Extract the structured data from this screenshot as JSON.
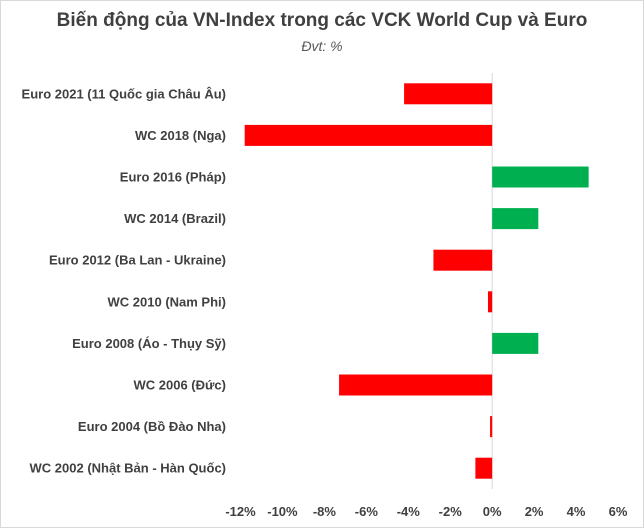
{
  "chart_data": {
    "type": "bar",
    "orientation": "horizontal",
    "title": "Biến động của VN-Index trong các VCK World Cup và Euro",
    "subtitle": "Đvt: %",
    "categories": [
      "Euro 2021 (11 Quốc gia Châu Âu)",
      "WC 2018 (Nga)",
      "Euro 2016 (Pháp)",
      "WC 2014 (Brazil)",
      "Euro 2012 (Ba Lan - Ukraine)",
      "WC 2010 (Nam Phi)",
      "Euro 2008 (Áo - Thụy Sỹ)",
      "WC 2006 (Đức)",
      "Euro 2004 (Bồ Đào Nha)",
      "WC 2002 (Nhật Bản - Hàn Quốc)"
    ],
    "values": [
      -4.2,
      -11.8,
      4.6,
      2.2,
      -2.8,
      -0.2,
      2.2,
      -7.3,
      -0.1,
      -0.8
    ],
    "xlim": [
      -12,
      6
    ],
    "xticks": [
      "-12%",
      "-10%",
      "-8%",
      "-6%",
      "-4%",
      "-2%",
      "0%",
      "2%",
      "4%",
      "6%"
    ],
    "xtick_values": [
      -12,
      -10,
      -8,
      -6,
      -4,
      -2,
      0,
      2,
      4,
      6
    ],
    "grid": false,
    "legend": "none",
    "colors": {
      "positive": "#00b050",
      "negative": "#ff0000",
      "axis": "#d9d9d9"
    }
  }
}
